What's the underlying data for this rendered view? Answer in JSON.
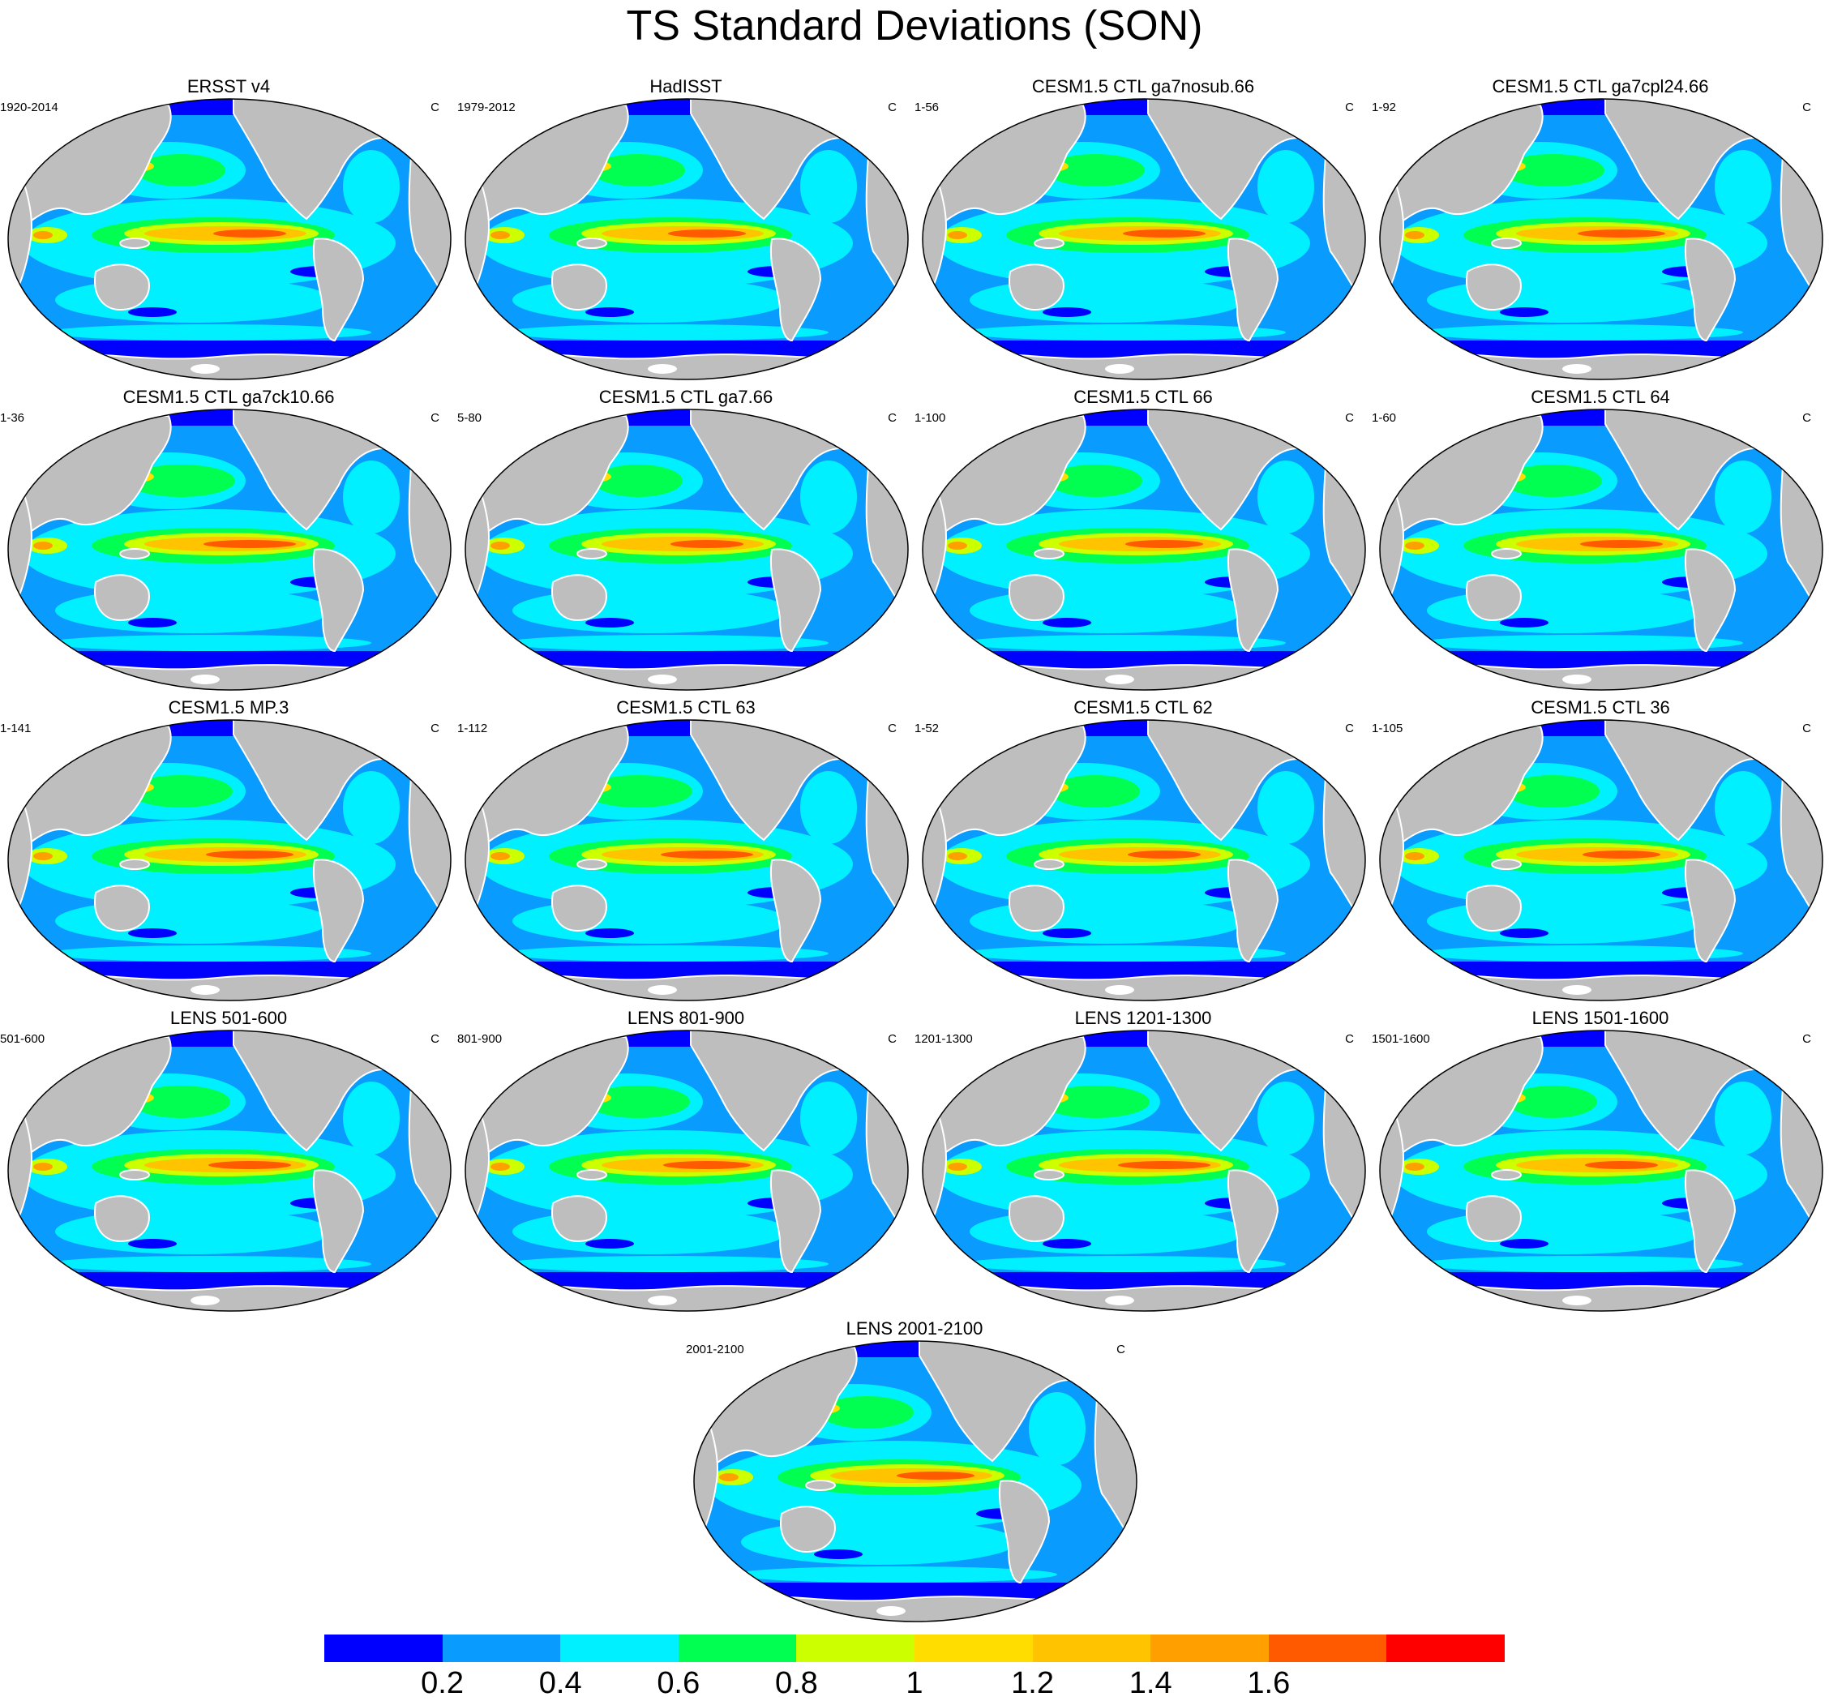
{
  "title": "TS Standard Deviations (SON)",
  "units": "C",
  "colors": {
    "land": "#bebebe",
    "coast": "#ffffff",
    "levels": [
      "#0000ff",
      "#0a9bff",
      "#00f0ff",
      "#00ff50",
      "#ccff00",
      "#ffdd00",
      "#ffc300",
      "#ffa000",
      "#ff5a00",
      "#ff0000"
    ]
  },
  "colorbar": {
    "labels": [
      "0.2",
      "0.4",
      "0.6",
      "0.8",
      "1",
      "1.2",
      "1.4",
      "1.6"
    ]
  },
  "panels": [
    {
      "title": "ERSST v4",
      "period": "1920-2014"
    },
    {
      "title": "HadISST",
      "period": "1979-2012"
    },
    {
      "title": "CESM1.5 CTL ga7nosub.66",
      "period": "1-56"
    },
    {
      "title": "CESM1.5 CTL ga7cpl24.66",
      "period": "1-92"
    },
    {
      "title": "CESM1.5 CTL ga7ck10.66",
      "period": "1-36"
    },
    {
      "title": "CESM1.5 CTL ga7.66",
      "period": "5-80"
    },
    {
      "title": "CESM1.5 CTL 66",
      "period": "1-100"
    },
    {
      "title": "CESM1.5 CTL 64",
      "period": "1-60"
    },
    {
      "title": "CESM1.5 MP.3",
      "period": "1-141"
    },
    {
      "title": "CESM1.5 CTL 63",
      "period": "1-112"
    },
    {
      "title": "CESM1.5 CTL 62",
      "period": "1-52"
    },
    {
      "title": "CESM1.5 CTL 36",
      "period": "1-105"
    },
    {
      "title": "LENS 501-600",
      "period": "501-600"
    },
    {
      "title": "LENS 801-900",
      "period": "801-900"
    },
    {
      "title": "LENS 1201-1300",
      "period": "1201-1300"
    },
    {
      "title": "LENS 1501-1600",
      "period": "1501-1600"
    },
    {
      "title": "LENS 2001-2100",
      "period": "2001-2100"
    }
  ]
}
